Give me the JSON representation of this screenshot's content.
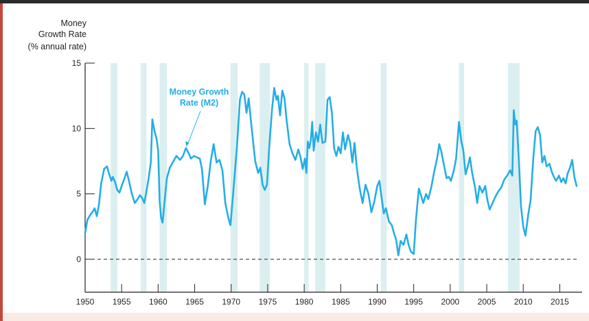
{
  "chart_data": {
    "type": "line",
    "ylabel": [
      "Money",
      "Growth Rate",
      "(% annual rate)"
    ],
    "annotation": [
      "Money Growth",
      "Rate (M2)"
    ],
    "xlim": [
      1950,
      2017.5
    ],
    "ylim": [
      -2.5,
      15
    ],
    "yticks": [
      0,
      5,
      10,
      15
    ],
    "ytick_labels": [
      "0",
      "5",
      "10",
      "15"
    ],
    "xticks": [
      1950,
      1955,
      1960,
      1965,
      1970,
      1975,
      1980,
      1985,
      1990,
      1995,
      2000,
      2005,
      2010,
      2015
    ],
    "xtick_labels": [
      "1950",
      "1955",
      "1960",
      "1965",
      "1970",
      "1975",
      "1980",
      "1985",
      "1990",
      "1995",
      "2000",
      "2005",
      "2010",
      "2015"
    ],
    "reference_line": 0,
    "recessions": [
      [
        1953.5,
        1954.4
      ],
      [
        1957.6,
        1958.4
      ],
      [
        1960.2,
        1961.2
      ],
      [
        1969.9,
        1970.9
      ],
      [
        1973.9,
        1975.3
      ],
      [
        1980.0,
        1980.6
      ],
      [
        1981.5,
        1982.9
      ],
      [
        1990.5,
        1991.3
      ],
      [
        2001.2,
        2001.9
      ],
      [
        2007.9,
        2009.5
      ]
    ],
    "colors": {
      "line": "#23aee5",
      "recession": "#dbeff0",
      "axis": "#231f20",
      "annotation": "#23aee5",
      "background": "#ffffff"
    },
    "series": [
      {
        "name": "Money Growth Rate (M2)",
        "points": [
          [
            1950.0,
            2.0
          ],
          [
            1950.3,
            3.0
          ],
          [
            1950.7,
            3.4
          ],
          [
            1951.0,
            3.6
          ],
          [
            1951.3,
            3.9
          ],
          [
            1951.6,
            3.3
          ],
          [
            1951.9,
            4.2
          ],
          [
            1952.2,
            5.8
          ],
          [
            1952.6,
            6.9
          ],
          [
            1953.0,
            7.1
          ],
          [
            1953.3,
            6.5
          ],
          [
            1953.6,
            6.0
          ],
          [
            1953.8,
            6.3
          ],
          [
            1954.1,
            5.9
          ],
          [
            1954.4,
            5.3
          ],
          [
            1954.7,
            5.1
          ],
          [
            1955.0,
            5.6
          ],
          [
            1955.4,
            6.2
          ],
          [
            1955.7,
            6.7
          ],
          [
            1956.0,
            6.0
          ],
          [
            1956.4,
            5.0
          ],
          [
            1956.8,
            4.3
          ],
          [
            1957.2,
            4.6
          ],
          [
            1957.5,
            4.9
          ],
          [
            1957.8,
            4.7
          ],
          [
            1958.1,
            4.3
          ],
          [
            1958.4,
            5.2
          ],
          [
            1958.7,
            6.2
          ],
          [
            1959.0,
            7.4
          ],
          [
            1959.2,
            10.7
          ],
          [
            1959.5,
            9.8
          ],
          [
            1959.8,
            9.2
          ],
          [
            1960.0,
            8.3
          ],
          [
            1960.2,
            4.5
          ],
          [
            1960.4,
            3.2
          ],
          [
            1960.6,
            2.8
          ],
          [
            1960.9,
            4.5
          ],
          [
            1961.2,
            6.2
          ],
          [
            1961.6,
            7.0
          ],
          [
            1962.0,
            7.4
          ],
          [
            1962.5,
            7.9
          ],
          [
            1963.0,
            7.6
          ],
          [
            1963.4,
            7.9
          ],
          [
            1963.8,
            8.5
          ],
          [
            1964.2,
            8.1
          ],
          [
            1964.5,
            7.7
          ],
          [
            1964.9,
            7.9
          ],
          [
            1965.3,
            7.8
          ],
          [
            1965.7,
            7.7
          ],
          [
            1966.0,
            6.9
          ],
          [
            1966.4,
            4.2
          ],
          [
            1966.8,
            5.6
          ],
          [
            1967.2,
            7.5
          ],
          [
            1967.6,
            8.8
          ],
          [
            1968.0,
            7.4
          ],
          [
            1968.4,
            7.6
          ],
          [
            1968.8,
            6.8
          ],
          [
            1969.2,
            4.3
          ],
          [
            1969.6,
            3.2
          ],
          [
            1969.9,
            2.6
          ],
          [
            1970.3,
            5.2
          ],
          [
            1970.8,
            8.7
          ],
          [
            1971.2,
            12.2
          ],
          [
            1971.5,
            12.8
          ],
          [
            1971.8,
            12.6
          ],
          [
            1972.1,
            11.2
          ],
          [
            1972.4,
            12.3
          ],
          [
            1972.7,
            10.6
          ],
          [
            1973.0,
            9.0
          ],
          [
            1973.3,
            7.5
          ],
          [
            1973.7,
            6.6
          ],
          [
            1974.0,
            7.0
          ],
          [
            1974.3,
            5.7
          ],
          [
            1974.6,
            5.3
          ],
          [
            1974.9,
            5.7
          ],
          [
            1975.2,
            8.5
          ],
          [
            1975.6,
            11.5
          ],
          [
            1975.9,
            13.1
          ],
          [
            1976.2,
            12.2
          ],
          [
            1976.4,
            12.5
          ],
          [
            1976.7,
            11.0
          ],
          [
            1977.0,
            12.9
          ],
          [
            1977.3,
            12.3
          ],
          [
            1977.6,
            10.6
          ],
          [
            1978.0,
            8.8
          ],
          [
            1978.4,
            8.1
          ],
          [
            1978.8,
            7.6
          ],
          [
            1979.2,
            8.4
          ],
          [
            1979.5,
            7.8
          ],
          [
            1979.8,
            6.9
          ],
          [
            1980.1,
            7.7
          ],
          [
            1980.3,
            6.6
          ],
          [
            1980.5,
            9.0
          ],
          [
            1980.7,
            8.5
          ],
          [
            1980.9,
            9.1
          ],
          [
            1981.1,
            10.5
          ],
          [
            1981.3,
            8.3
          ],
          [
            1981.6,
            9.7
          ],
          [
            1981.9,
            9.0
          ],
          [
            1982.2,
            10.3
          ],
          [
            1982.5,
            8.9
          ],
          [
            1982.9,
            9.0
          ],
          [
            1983.2,
            12.2
          ],
          [
            1983.5,
            12.4
          ],
          [
            1983.8,
            11.2
          ],
          [
            1984.1,
            8.5
          ],
          [
            1984.4,
            7.9
          ],
          [
            1984.7,
            8.6
          ],
          [
            1985.0,
            8.1
          ],
          [
            1985.3,
            9.7
          ],
          [
            1985.6,
            8.4
          ],
          [
            1986.0,
            9.5
          ],
          [
            1986.3,
            8.9
          ],
          [
            1986.6,
            7.4
          ],
          [
            1986.9,
            8.9
          ],
          [
            1987.2,
            7.0
          ],
          [
            1987.6,
            5.4
          ],
          [
            1988.0,
            4.3
          ],
          [
            1988.4,
            5.7
          ],
          [
            1988.8,
            5.0
          ],
          [
            1989.2,
            3.6
          ],
          [
            1989.6,
            4.4
          ],
          [
            1990.0,
            5.6
          ],
          [
            1990.3,
            6.0
          ],
          [
            1990.6,
            4.7
          ],
          [
            1990.9,
            3.5
          ],
          [
            1991.2,
            3.9
          ],
          [
            1991.6,
            2.9
          ],
          [
            1992.0,
            2.6
          ],
          [
            1992.3,
            2.0
          ],
          [
            1992.6,
            1.5
          ],
          [
            1992.9,
            0.3
          ],
          [
            1993.2,
            1.4
          ],
          [
            1993.6,
            1.1
          ],
          [
            1994.0,
            1.9
          ],
          [
            1994.3,
            1.1
          ],
          [
            1994.6,
            0.6
          ],
          [
            1995.0,
            0.4
          ],
          [
            1995.3,
            3.0
          ],
          [
            1995.7,
            5.4
          ],
          [
            1996.0,
            4.9
          ],
          [
            1996.3,
            4.3
          ],
          [
            1996.7,
            5.0
          ],
          [
            1997.0,
            4.6
          ],
          [
            1997.4,
            5.5
          ],
          [
            1997.8,
            6.7
          ],
          [
            1998.2,
            7.7
          ],
          [
            1998.5,
            8.8
          ],
          [
            1998.8,
            8.2
          ],
          [
            1999.1,
            7.3
          ],
          [
            1999.5,
            6.2
          ],
          [
            1999.8,
            6.3
          ],
          [
            2000.1,
            6.0
          ],
          [
            2000.5,
            6.8
          ],
          [
            2000.8,
            7.7
          ],
          [
            2001.2,
            10.5
          ],
          [
            2001.5,
            9.1
          ],
          [
            2001.8,
            8.3
          ],
          [
            2002.1,
            6.5
          ],
          [
            2002.4,
            7.1
          ],
          [
            2002.7,
            7.8
          ],
          [
            2003.0,
            6.6
          ],
          [
            2003.4,
            5.5
          ],
          [
            2003.7,
            4.3
          ],
          [
            2004.0,
            5.6
          ],
          [
            2004.4,
            5.1
          ],
          [
            2004.8,
            5.6
          ],
          [
            2005.1,
            4.5
          ],
          [
            2005.4,
            3.8
          ],
          [
            2005.8,
            4.3
          ],
          [
            2006.2,
            4.8
          ],
          [
            2006.6,
            5.2
          ],
          [
            2007.0,
            5.5
          ],
          [
            2007.4,
            6.1
          ],
          [
            2007.8,
            6.4
          ],
          [
            2008.2,
            6.8
          ],
          [
            2008.5,
            6.4
          ],
          [
            2008.7,
            11.4
          ],
          [
            2008.9,
            10.3
          ],
          [
            2009.1,
            10.6
          ],
          [
            2009.4,
            7.6
          ],
          [
            2009.7,
            4.0
          ],
          [
            2010.0,
            2.5
          ],
          [
            2010.3,
            1.8
          ],
          [
            2010.7,
            3.5
          ],
          [
            2011.0,
            4.5
          ],
          [
            2011.4,
            7.9
          ],
          [
            2011.7,
            9.8
          ],
          [
            2012.0,
            10.1
          ],
          [
            2012.3,
            9.5
          ],
          [
            2012.6,
            7.4
          ],
          [
            2012.9,
            7.9
          ],
          [
            2013.2,
            7.1
          ],
          [
            2013.6,
            7.3
          ],
          [
            2013.9,
            6.7
          ],
          [
            2014.2,
            6.3
          ],
          [
            2014.5,
            6.0
          ],
          [
            2014.9,
            6.4
          ],
          [
            2015.2,
            5.9
          ],
          [
            2015.5,
            6.2
          ],
          [
            2015.8,
            5.8
          ],
          [
            2016.1,
            6.6
          ],
          [
            2016.4,
            7.0
          ],
          [
            2016.7,
            7.6
          ],
          [
            2017.0,
            6.3
          ],
          [
            2017.3,
            5.6
          ]
        ]
      }
    ]
  }
}
